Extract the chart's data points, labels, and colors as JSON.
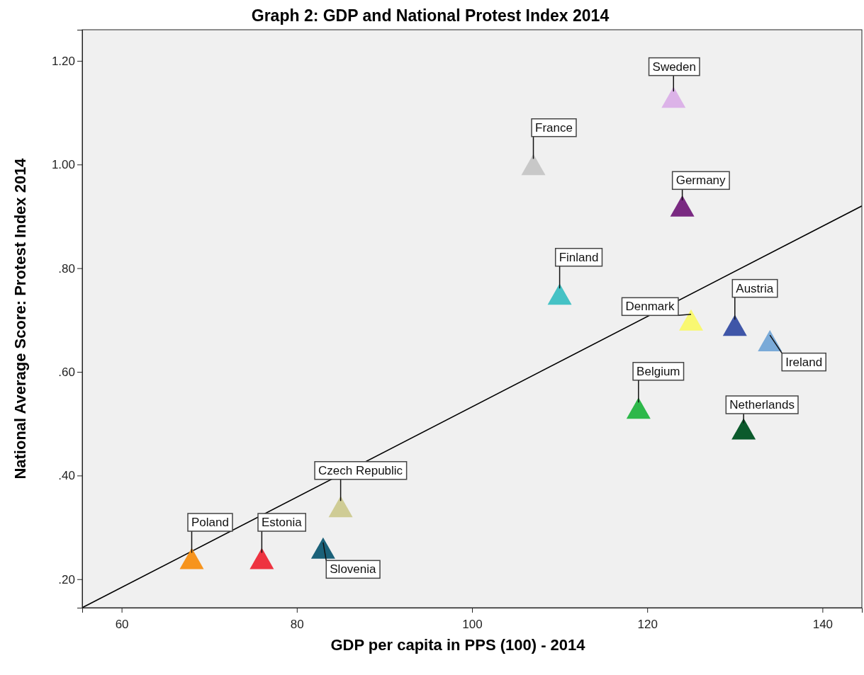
{
  "chart_data": {
    "type": "scatter",
    "title": "Graph 2: GDP and National Protest Index 2014",
    "xlabel": "GDP per capita in PPS (100) - 2014",
    "ylabel": "National Average Score: Protest Index 2014",
    "xlim": [
      55.5,
      144.5
    ],
    "xticks": [
      60,
      80,
      100,
      120,
      140
    ],
    "ylim": [
      0.145,
      1.26
    ],
    "yticks": [
      {
        "value": 0.2,
        "label": ".20"
      },
      {
        "value": 0.4,
        "label": ".40"
      },
      {
        "value": 0.6,
        "label": ".60"
      },
      {
        "value": 0.8,
        "label": ".80"
      },
      {
        "value": 1.0,
        "label": "1.00"
      },
      {
        "value": 1.2,
        "label": "1.20"
      }
    ],
    "grid": false,
    "marker": "triangle",
    "series": [
      {
        "name": "Poland",
        "color": "#f7941d",
        "x": [
          68
        ],
        "values": [
          0.24
        ]
      },
      {
        "name": "Estonia",
        "color": "#ee3340",
        "x": [
          76
        ],
        "values": [
          0.24
        ]
      },
      {
        "name": "Czech Republic",
        "color": "#cfcc95",
        "x": [
          85
        ],
        "values": [
          0.34
        ]
      },
      {
        "name": "Slovenia",
        "color": "#1b6179",
        "x": [
          83
        ],
        "values": [
          0.26
        ]
      },
      {
        "name": "France",
        "color": "#c8c8c8",
        "x": [
          107
        ],
        "values": [
          1.0
        ]
      },
      {
        "name": "Finland",
        "color": "#45c2c5",
        "x": [
          110
        ],
        "values": [
          0.75
        ]
      },
      {
        "name": "Sweden",
        "color": "#dcb3e8",
        "x": [
          123
        ],
        "values": [
          1.13
        ]
      },
      {
        "name": "Germany",
        "color": "#7a2a82",
        "x": [
          124
        ],
        "values": [
          0.92
        ]
      },
      {
        "name": "Denmark",
        "color": "#f9f871",
        "x": [
          125
        ],
        "values": [
          0.7
        ]
      },
      {
        "name": "Belgium",
        "color": "#2db84a",
        "x": [
          119
        ],
        "values": [
          0.53
        ]
      },
      {
        "name": "Austria",
        "color": "#3f56a8",
        "x": [
          130
        ],
        "values": [
          0.69
        ]
      },
      {
        "name": "Ireland",
        "color": "#7aaad8",
        "x": [
          134
        ],
        "values": [
          0.66
        ]
      },
      {
        "name": "Netherlands",
        "color": "#0b5a2c",
        "x": [
          131
        ],
        "values": [
          0.49
        ]
      },
      {
        "type": "line",
        "marker": "none",
        "color": "#000000",
        "x": [
          55.5,
          144.5
        ],
        "values": [
          0.145,
          0.92
        ]
      }
    ]
  }
}
